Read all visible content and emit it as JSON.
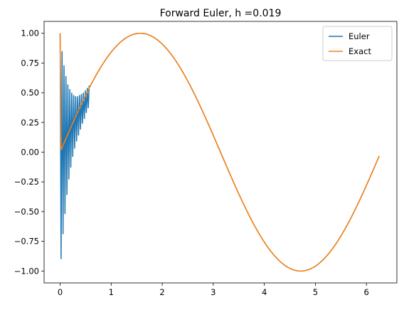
{
  "chart_data": {
    "type": "line",
    "title": "Forward Euler, h =0.019",
    "xlabel": "",
    "ylabel": "",
    "xlim": [
      -0.314,
      6.597
    ],
    "ylim": [
      -1.1,
      1.1
    ],
    "x_ticks": [
      0,
      1,
      2,
      3,
      4,
      5,
      6
    ],
    "x_tick_labels": [
      "0",
      "1",
      "2",
      "3",
      "4",
      "5",
      "6"
    ],
    "y_ticks": [
      1.0,
      0.75,
      0.5,
      0.25,
      0.0,
      -0.25,
      -0.5,
      -0.75,
      -1.0
    ],
    "y_tick_labels": [
      "1.00",
      "0.75",
      "0.50",
      "0.25",
      "0.00",
      "−0.25",
      "−0.50",
      "−0.75",
      "−1.00"
    ],
    "grid": false,
    "legend_position": "upper right",
    "series": [
      {
        "name": "Euler",
        "color": "#1f77b4",
        "description": "oscillating then converging to sin(x)",
        "x": [
          0,
          0.019,
          0.038,
          0.057,
          0.076,
          0.095,
          0.114,
          0.133,
          0.152,
          0.171,
          0.19,
          0.209,
          0.228,
          0.247,
          0.266,
          0.285,
          0.304,
          0.323,
          0.342,
          0.361,
          0.38,
          0.399,
          0.418,
          0.437,
          0.456,
          0.475,
          0.494,
          0.513,
          0.532,
          0.551,
          0.57
        ],
        "y": [
          1.0,
          -0.9,
          0.85,
          -0.69,
          0.73,
          -0.52,
          0.64,
          -0.36,
          0.57,
          -0.23,
          0.53,
          -0.13,
          0.5,
          -0.04,
          0.48,
          0.03,
          0.47,
          0.09,
          0.47,
          0.14,
          0.48,
          0.19,
          0.49,
          0.24,
          0.5,
          0.28,
          0.52,
          0.33,
          0.54,
          0.37,
          0.56
        ],
        "tail": "sin"
      },
      {
        "name": "Exact",
        "color": "#ff7f0e",
        "description": "starts at 1, drops to sin(h), then follows sin(x)",
        "x": [
          0,
          0.019
        ],
        "y": [
          1.0,
          0.019
        ],
        "tail": "sin"
      }
    ],
    "x_end": 6.27
  }
}
